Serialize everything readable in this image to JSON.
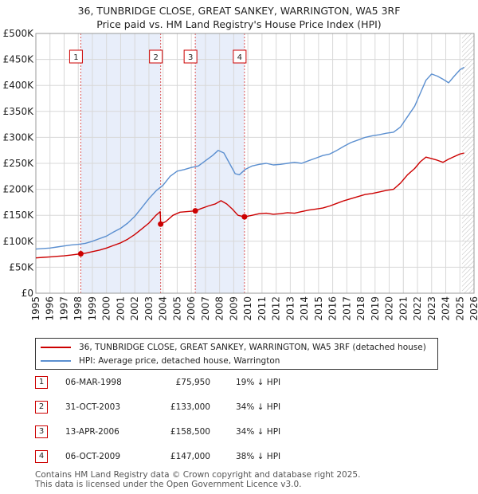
{
  "header": {
    "title_line1": "36, TUNBRIDGE CLOSE, GREAT SANKEY, WARRINGTON, WA5 3RF",
    "title_line2": "Price paid vs. HM Land Registry's House Price Index (HPI)"
  },
  "colors": {
    "property": "#cc0000",
    "hpi": "#5b8fd0",
    "shade": "#e8eefa",
    "grid": "#d8d8d8",
    "vline": "#dd5555"
  },
  "legend": {
    "property_label": "36, TUNBRIDGE CLOSE, GREAT SANKEY, WARRINGTON, WA5 3RF (detached house)",
    "hpi_label": "HPI: Average price, detached house, Warrington"
  },
  "sales": [
    {
      "n": "1",
      "date": "06-MAR-1998",
      "price": "£75,950",
      "hpi": "19% ↓ HPI"
    },
    {
      "n": "2",
      "date": "31-OCT-2003",
      "price": "£133,000",
      "hpi": "34% ↓ HPI"
    },
    {
      "n": "3",
      "date": "13-APR-2006",
      "price": "£158,500",
      "hpi": "34% ↓ HPI"
    },
    {
      "n": "4",
      "date": "06-OCT-2009",
      "price": "£147,000",
      "hpi": "38% ↓ HPI"
    }
  ],
  "footer": {
    "line1": "Contains HM Land Registry data © Crown copyright and database right 2025.",
    "line2": "This data is licensed under the Open Government Licence v3.0."
  },
  "chart_data": {
    "type": "line",
    "title": "36, TUNBRIDGE CLOSE, GREAT SANKEY, WARRINGTON, WA5 3RF",
    "subtitle": "Price paid vs. HM Land Registry's House Price Index (HPI)",
    "xlim": [
      1995,
      2026
    ],
    "ylim": [
      0,
      500000
    ],
    "x_ticks": [
      1995,
      1996,
      1997,
      1998,
      1999,
      2000,
      2001,
      2002,
      2003,
      2004,
      2005,
      2006,
      2007,
      2008,
      2009,
      2010,
      2011,
      2012,
      2013,
      2014,
      2015,
      2016,
      2017,
      2018,
      2019,
      2020,
      2021,
      2022,
      2023,
      2024,
      2025,
      2026
    ],
    "y_ticks": [
      {
        "value": 0,
        "label": "£0"
      },
      {
        "value": 50000,
        "label": "£50K"
      },
      {
        "value": 100000,
        "label": "£100K"
      },
      {
        "value": 150000,
        "label": "£150K"
      },
      {
        "value": 200000,
        "label": "£200K"
      },
      {
        "value": 250000,
        "label": "£250K"
      },
      {
        "value": 300000,
        "label": "£300K"
      },
      {
        "value": 350000,
        "label": "£350K"
      },
      {
        "value": 400000,
        "label": "£400K"
      },
      {
        "value": 450000,
        "label": "£450K"
      },
      {
        "value": 500000,
        "label": "£500K"
      }
    ],
    "shaded_ranges": [
      [
        1998.18,
        2003.83
      ],
      [
        2006.28,
        2009.76
      ]
    ],
    "future_from": 2025.15,
    "markers": [
      {
        "label": "1",
        "x": 1998.18,
        "y": 75950
      },
      {
        "label": "2",
        "x": 2003.83,
        "y": 133000
      },
      {
        "label": "3",
        "x": 2006.28,
        "y": 158500
      },
      {
        "label": "4",
        "x": 2009.76,
        "y": 147000
      }
    ],
    "series": [
      {
        "name": "HPI: Average price, detached house, Warrington",
        "x": [
          1995,
          1995.5,
          1996,
          1996.5,
          1997,
          1997.5,
          1998,
          1998.5,
          1999,
          1999.5,
          2000,
          2000.5,
          2001,
          2001.5,
          2002,
          2002.5,
          2003,
          2003.5,
          2004,
          2004.5,
          2005,
          2005.5,
          2006,
          2006.5,
          2007,
          2007.5,
          2007.9,
          2008.3,
          2008.7,
          2009.1,
          2009.4,
          2009.8,
          2010.3,
          2010.8,
          2011.3,
          2011.8,
          2012.3,
          2012.8,
          2013.3,
          2013.8,
          2014.3,
          2014.8,
          2015.3,
          2015.8,
          2016.3,
          2016.8,
          2017.3,
          2017.8,
          2018.3,
          2018.8,
          2019.3,
          2019.8,
          2020.3,
          2020.8,
          2021.3,
          2021.8,
          2022.2,
          2022.6,
          2023,
          2023.4,
          2023.8,
          2024.2,
          2024.6,
          2025,
          2025.3
        ],
        "y": [
          85000,
          86000,
          87000,
          89000,
          91000,
          93000,
          94000,
          96000,
          100000,
          105000,
          110000,
          118000,
          125000,
          135000,
          148000,
          165000,
          182000,
          197000,
          208000,
          225000,
          235000,
          238000,
          242000,
          245000,
          255000,
          265000,
          275000,
          270000,
          250000,
          230000,
          228000,
          238000,
          245000,
          248000,
          250000,
          247000,
          248000,
          250000,
          252000,
          250000,
          255000,
          260000,
          265000,
          268000,
          275000,
          283000,
          290000,
          295000,
          300000,
          303000,
          305000,
          308000,
          310000,
          320000,
          340000,
          360000,
          385000,
          410000,
          422000,
          418000,
          412000,
          405000,
          418000,
          430000,
          435000
        ]
      },
      {
        "name": "36, TUNBRIDGE CLOSE, GREAT SANKEY, WARRINGTON, WA5 3RF (detached house)",
        "x": [
          1995,
          1995.5,
          1996,
          1996.5,
          1997,
          1997.5,
          1998.18,
          1998.5,
          1999,
          1999.5,
          2000,
          2000.5,
          2001,
          2001.5,
          2002,
          2002.5,
          2003,
          2003.5,
          2003.8,
          2003.83,
          2004.2,
          2004.7,
          2005.2,
          2005.7,
          2006.28,
          2006.7,
          2007.2,
          2007.7,
          2008.1,
          2008.5,
          2008.9,
          2009.3,
          2009.76,
          2010.3,
          2010.8,
          2011.3,
          2011.8,
          2012.3,
          2012.8,
          2013.3,
          2013.8,
          2014.3,
          2014.8,
          2015.3,
          2015.8,
          2016.3,
          2016.8,
          2017.3,
          2017.8,
          2018.3,
          2018.8,
          2019.3,
          2019.8,
          2020.3,
          2020.8,
          2021.3,
          2021.8,
          2022.2,
          2022.6,
          2023,
          2023.4,
          2023.8,
          2024.2,
          2024.6,
          2025,
          2025.3
        ],
        "y": [
          68000,
          69000,
          70000,
          71000,
          72000,
          73500,
          75950,
          77000,
          80000,
          83000,
          87000,
          92000,
          97000,
          104000,
          113000,
          124000,
          135000,
          150000,
          157000,
          133000,
          138000,
          150000,
          156000,
          157000,
          158500,
          163000,
          168000,
          172000,
          178000,
          172000,
          162000,
          150000,
          147000,
          150000,
          153000,
          154000,
          152000,
          153000,
          155000,
          154000,
          157000,
          160000,
          162000,
          164000,
          168000,
          173000,
          178000,
          182000,
          186000,
          190000,
          192000,
          195000,
          198000,
          200000,
          212000,
          228000,
          240000,
          253000,
          262000,
          259000,
          256000,
          252000,
          258000,
          263000,
          268000,
          270000
        ]
      }
    ]
  }
}
